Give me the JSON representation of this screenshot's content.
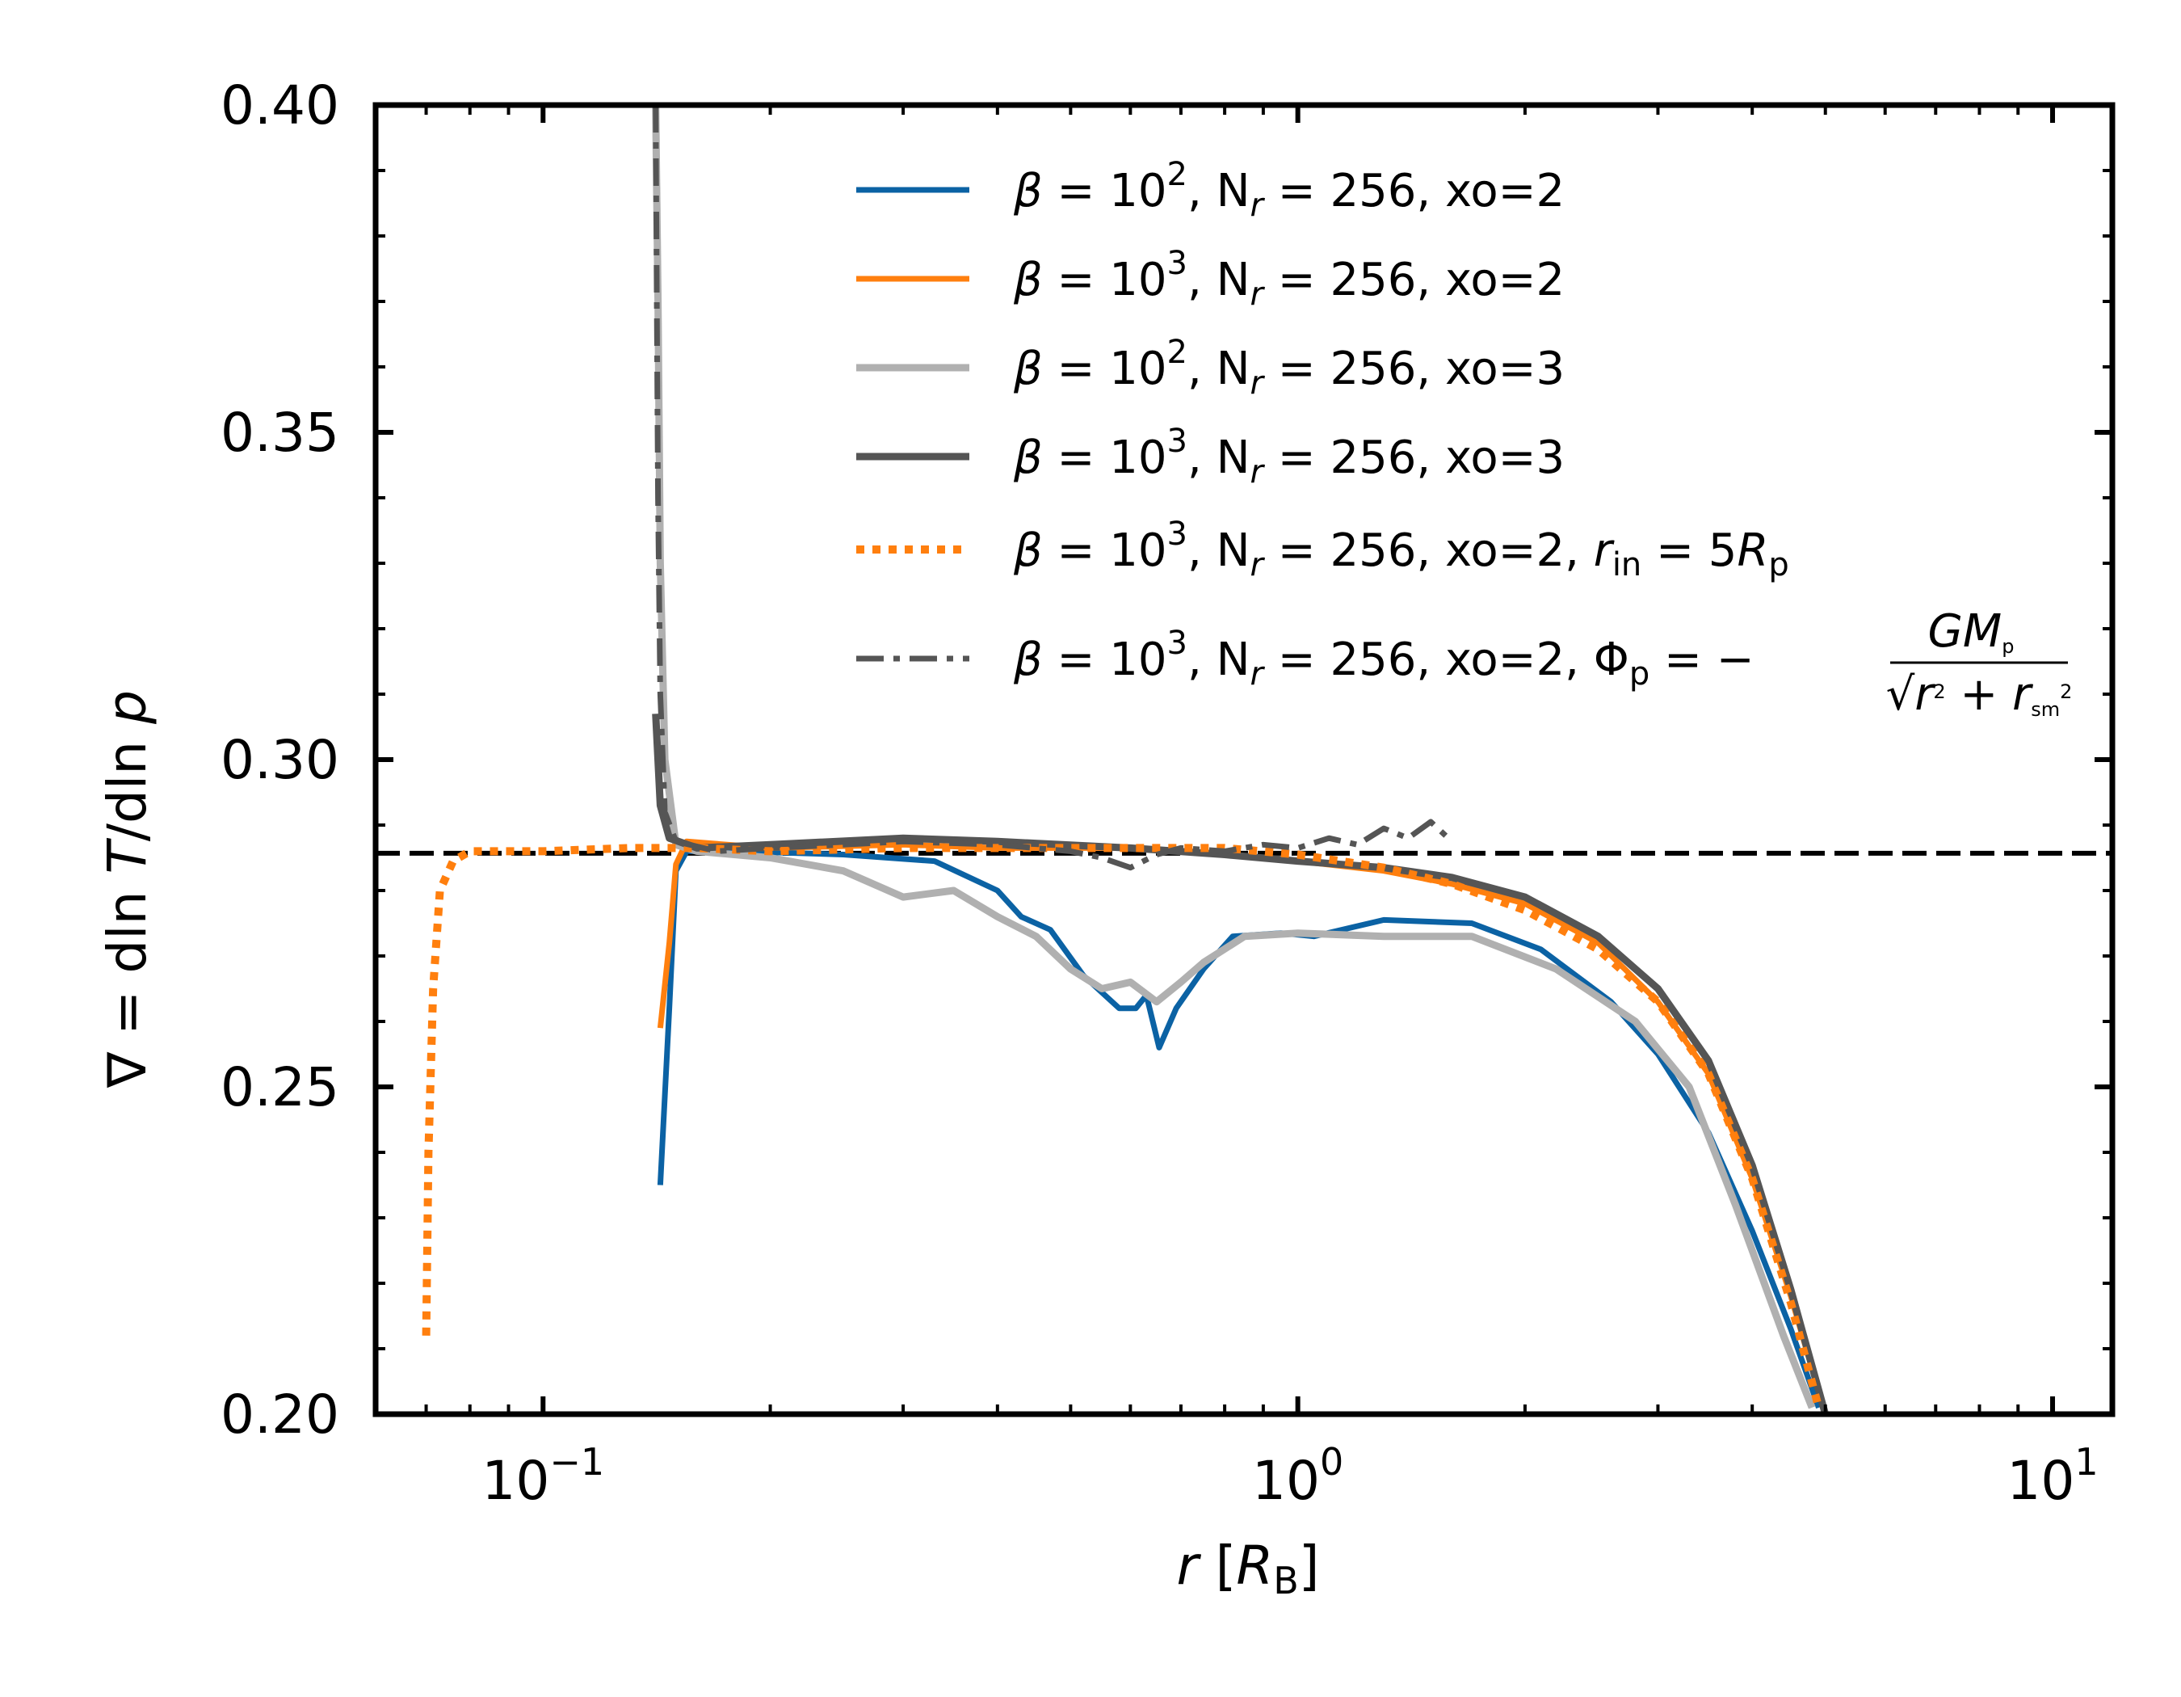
{
  "chart_data": {
    "type": "line",
    "xscale": "log",
    "xlim": [
      0.06,
      12
    ],
    "ylim": [
      0.2,
      0.4
    ],
    "xlabel": "r [R_B]",
    "ylabel": "∇ = d ln T / d ln p",
    "yticks": [
      0.2,
      0.25,
      0.3,
      0.35,
      0.4
    ],
    "ytick_labels": [
      "0.20",
      "0.25",
      "0.30",
      "0.35",
      "0.40"
    ],
    "xticks": [
      0.1,
      1,
      10
    ],
    "xtick_labels": [
      {
        "base": "10",
        "exp": "−1"
      },
      {
        "base": "10",
        "exp": "0"
      },
      {
        "base": "10",
        "exp": "1"
      }
    ],
    "reference_line": {
      "y": 0.2857,
      "style": "dashed",
      "color": "#000000"
    },
    "legend_position": "top-right",
    "series": [
      {
        "name": "β = 10², N_r = 256, xo=2",
        "color": "#0b62a4",
        "dash": "solid",
        "width": 7,
        "points": [
          [
            0.143,
            0.235
          ],
          [
            0.147,
            0.262
          ],
          [
            0.15,
            0.283
          ],
          [
            0.155,
            0.286
          ],
          [
            0.18,
            0.286
          ],
          [
            0.25,
            0.2855
          ],
          [
            0.33,
            0.2845
          ],
          [
            0.4,
            0.28
          ],
          [
            0.43,
            0.276
          ],
          [
            0.47,
            0.274
          ],
          [
            0.52,
            0.267
          ],
          [
            0.58,
            0.262
          ],
          [
            0.61,
            0.262
          ],
          [
            0.63,
            0.264
          ],
          [
            0.655,
            0.256
          ],
          [
            0.69,
            0.262
          ],
          [
            0.75,
            0.268
          ],
          [
            0.82,
            0.273
          ],
          [
            0.95,
            0.2735
          ],
          [
            1.05,
            0.273
          ],
          [
            1.3,
            0.2755
          ],
          [
            1.7,
            0.275
          ],
          [
            2.1,
            0.271
          ],
          [
            2.6,
            0.263
          ],
          [
            3.0,
            0.255
          ],
          [
            3.5,
            0.243
          ],
          [
            4.0,
            0.228
          ],
          [
            4.5,
            0.213
          ],
          [
            4.9,
            0.201
          ]
        ]
      },
      {
        "name": "β = 10³, N_r = 256, xo=2",
        "color": "#ff7f0e",
        "dash": "solid",
        "width": 7,
        "points": [
          [
            0.143,
            0.259
          ],
          [
            0.147,
            0.272
          ],
          [
            0.15,
            0.284
          ],
          [
            0.155,
            0.2875
          ],
          [
            0.2,
            0.2865
          ],
          [
            0.3,
            0.287
          ],
          [
            0.4,
            0.2865
          ],
          [
            0.6,
            0.2865
          ],
          [
            0.8,
            0.2855
          ],
          [
            1.0,
            0.2845
          ],
          [
            1.3,
            0.283
          ],
          [
            1.6,
            0.281
          ],
          [
            2.0,
            0.278
          ],
          [
            2.5,
            0.272
          ],
          [
            3.0,
            0.263
          ],
          [
            3.5,
            0.252
          ],
          [
            4.0,
            0.236
          ],
          [
            4.5,
            0.218
          ],
          [
            5.0,
            0.2
          ]
        ]
      },
      {
        "name": "β = 10², N_r = 256, xo=3",
        "color": "#b0b0b0",
        "dash": "solid",
        "width": 9,
        "points": [
          [
            0.141,
            0.4
          ],
          [
            0.142,
            0.37
          ],
          [
            0.143,
            0.33
          ],
          [
            0.145,
            0.3
          ],
          [
            0.15,
            0.287
          ],
          [
            0.16,
            0.286
          ],
          [
            0.2,
            0.285
          ],
          [
            0.25,
            0.283
          ],
          [
            0.3,
            0.279
          ],
          [
            0.35,
            0.28
          ],
          [
            0.4,
            0.276
          ],
          [
            0.45,
            0.273
          ],
          [
            0.5,
            0.268
          ],
          [
            0.55,
            0.265
          ],
          [
            0.6,
            0.266
          ],
          [
            0.65,
            0.263
          ],
          [
            0.7,
            0.266
          ],
          [
            0.75,
            0.269
          ],
          [
            0.85,
            0.273
          ],
          [
            1.0,
            0.2735
          ],
          [
            1.3,
            0.273
          ],
          [
            1.7,
            0.273
          ],
          [
            2.2,
            0.268
          ],
          [
            2.8,
            0.26
          ],
          [
            3.3,
            0.25
          ],
          [
            3.8,
            0.232
          ],
          [
            4.4,
            0.212
          ],
          [
            4.8,
            0.201
          ]
        ]
      },
      {
        "name": "β = 10³, N_r = 256, xo=3",
        "color": "#555555",
        "dash": "solid",
        "width": 9,
        "points": [
          [
            0.141,
            0.307
          ],
          [
            0.143,
            0.293
          ],
          [
            0.147,
            0.288
          ],
          [
            0.16,
            0.2865
          ],
          [
            0.2,
            0.287
          ],
          [
            0.3,
            0.288
          ],
          [
            0.4,
            0.2875
          ],
          [
            0.6,
            0.2865
          ],
          [
            0.8,
            0.2855
          ],
          [
            1.0,
            0.2845
          ],
          [
            1.3,
            0.2835
          ],
          [
            1.6,
            0.282
          ],
          [
            2.0,
            0.279
          ],
          [
            2.5,
            0.273
          ],
          [
            3.0,
            0.265
          ],
          [
            3.5,
            0.254
          ],
          [
            4.0,
            0.238
          ],
          [
            4.5,
            0.219
          ],
          [
            5.0,
            0.2
          ]
        ]
      },
      {
        "name": "β = 10³, N_r = 256, xo=2, r_in = 5R_p",
        "color": "#ff7f0e",
        "dash": "dotted",
        "width": 10,
        "points": [
          [
            0.07,
            0.212
          ],
          [
            0.0705,
            0.24
          ],
          [
            0.0715,
            0.265
          ],
          [
            0.073,
            0.28
          ],
          [
            0.076,
            0.2845
          ],
          [
            0.08,
            0.286
          ],
          [
            0.1,
            0.286
          ],
          [
            0.13,
            0.2865
          ],
          [
            0.16,
            0.2865
          ],
          [
            0.2,
            0.286
          ],
          [
            0.3,
            0.2865
          ],
          [
            0.5,
            0.2865
          ],
          [
            0.8,
            0.2865
          ],
          [
            1.0,
            0.2855
          ],
          [
            1.3,
            0.2835
          ],
          [
            1.6,
            0.281
          ],
          [
            2.0,
            0.277
          ],
          [
            2.5,
            0.271
          ],
          [
            3.0,
            0.263
          ],
          [
            3.5,
            0.252
          ],
          [
            4.0,
            0.236
          ],
          [
            4.5,
            0.217
          ],
          [
            4.9,
            0.201
          ]
        ]
      },
      {
        "name": "β = 10³, N_r = 256, xo=2, Φ_p = −GM_p/√(r² + r_sm²)",
        "color": "#555555",
        "dash": "dashdot",
        "width": 7,
        "points": [
          [
            0.141,
            0.4
          ],
          [
            0.1415,
            0.37
          ],
          [
            0.142,
            0.34
          ],
          [
            0.143,
            0.31
          ],
          [
            0.145,
            0.292
          ],
          [
            0.15,
            0.2875
          ],
          [
            0.17,
            0.286
          ],
          [
            0.2,
            0.2865
          ],
          [
            0.25,
            0.287
          ],
          [
            0.3,
            0.2875
          ],
          [
            0.4,
            0.287
          ],
          [
            0.5,
            0.286
          ],
          [
            0.55,
            0.285
          ],
          [
            0.6,
            0.2835
          ],
          [
            0.65,
            0.2855
          ],
          [
            0.7,
            0.2865
          ],
          [
            0.8,
            0.286
          ],
          [
            0.9,
            0.287
          ],
          [
            1.0,
            0.2865
          ],
          [
            1.1,
            0.288
          ],
          [
            1.2,
            0.287
          ],
          [
            1.3,
            0.2895
          ],
          [
            1.4,
            0.288
          ],
          [
            1.5,
            0.2905
          ],
          [
            1.6,
            0.2875
          ]
        ]
      }
    ]
  },
  "legend": [
    {
      "beta_exp": "2",
      "rest": ", N",
      "suffix": " = 256, xo=2",
      "extra": ""
    },
    {
      "beta_exp": "3",
      "rest": ", N",
      "suffix": " = 256, xo=2",
      "extra": ""
    },
    {
      "beta_exp": "2",
      "rest": ", N",
      "suffix": " = 256, xo=3",
      "extra": ""
    },
    {
      "beta_exp": "3",
      "rest": ", N",
      "suffix": " = 256, xo=3",
      "extra": ""
    },
    {
      "beta_exp": "3",
      "rest": ", N",
      "suffix": " = 256, xo=2, ",
      "extra": "rin"
    },
    {
      "beta_exp": "3",
      "rest": ", N",
      "suffix": " = 256, xo=2, ",
      "extra": "phi"
    }
  ]
}
